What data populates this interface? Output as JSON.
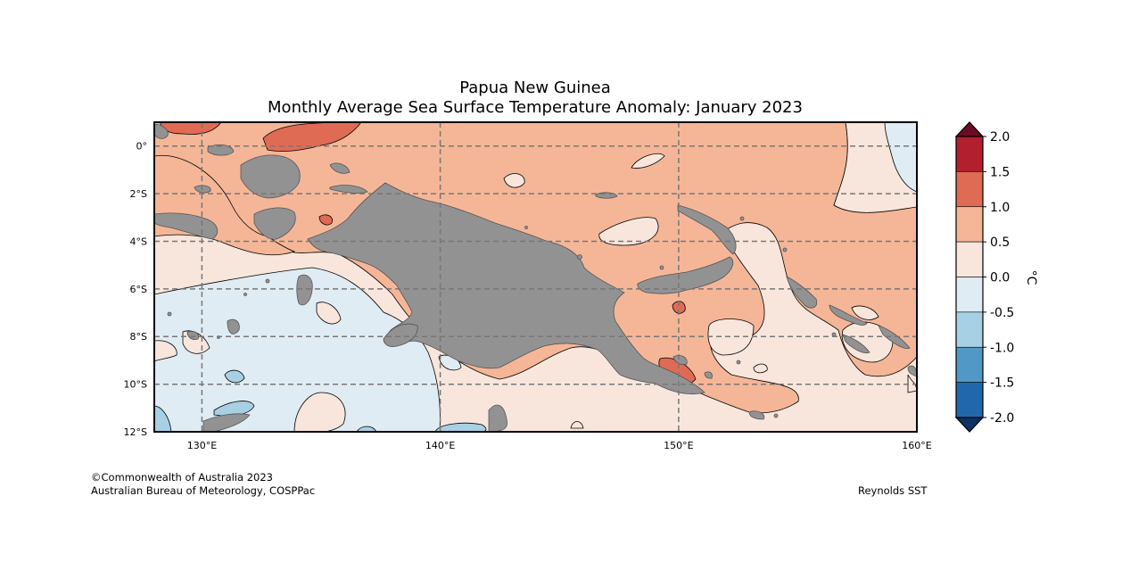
{
  "title": {
    "line1": "Papua New Guinea",
    "line2": "Monthly Average Sea Surface Temperature Anomaly: January 2023"
  },
  "map": {
    "lon_ticks": [
      "130°E",
      "140°E",
      "150°E",
      "160°E"
    ],
    "lat_ticks": [
      "0°",
      "2°S",
      "4°S",
      "6°S",
      "8°S",
      "10°S",
      "12°S"
    ],
    "extent": {
      "lon": [
        128,
        160
      ],
      "lat": [
        -12,
        1
      ]
    },
    "land_color": "#929292",
    "grid": true
  },
  "colorbar": {
    "unit": "°C",
    "labels": [
      "2.0",
      "1.5",
      "1.0",
      "0.5",
      "0.0",
      "-0.5",
      "-1.0",
      "-1.5",
      "-2.0"
    ],
    "bins": [
      {
        "range": [
          1.5,
          2.0
        ],
        "color": "#b2202e"
      },
      {
        "range": [
          1.0,
          1.5
        ],
        "color": "#e06b55"
      },
      {
        "range": [
          0.5,
          1.0
        ],
        "color": "#f5b697"
      },
      {
        "range": [
          0.0,
          0.5
        ],
        "color": "#f8e6dc"
      },
      {
        "range": [
          -0.5,
          0.0
        ],
        "color": "#e0ecf3"
      },
      {
        "range": [
          -1.0,
          -0.5
        ],
        "color": "#a8d0e4"
      },
      {
        "range": [
          -1.5,
          -1.0
        ],
        "color": "#5198c7"
      },
      {
        "range": [
          -2.0,
          -1.5
        ],
        "color": "#2167ac"
      }
    ],
    "extend_high_color": "#6b0d22",
    "extend_low_color": "#0e3263"
  },
  "footer": {
    "copyright": "©Commonwealth of Australia 2023",
    "agency": "Australian Bureau of Meteorology, COSPPac",
    "source": "Reynolds SST"
  }
}
